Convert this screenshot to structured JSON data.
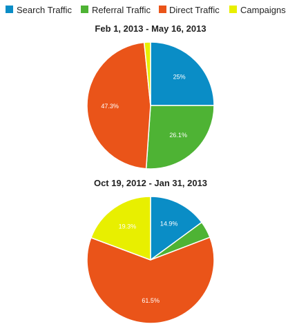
{
  "legend": {
    "items": [
      {
        "label": "Search Traffic",
        "color": "#0a8dc6"
      },
      {
        "label": "Referral Traffic",
        "color": "#4eb334"
      },
      {
        "label": "Direct Traffic",
        "color": "#ea5419"
      },
      {
        "label": "Campaigns",
        "color": "#e8ef00"
      }
    ]
  },
  "chart_data": [
    {
      "type": "pie",
      "title": "Feb 1, 2013 - May 16, 2013",
      "slices": [
        {
          "name": "Search Traffic",
          "value": 25.0,
          "label": "25%"
        },
        {
          "name": "Referral Traffic",
          "value": 26.1,
          "label": "26.1%"
        },
        {
          "name": "Direct Traffic",
          "value": 47.3,
          "label": "47.3%"
        },
        {
          "name": "Campaigns",
          "value": 1.6,
          "label": ""
        }
      ]
    },
    {
      "type": "pie",
      "title": "Oct 19, 2012 - Jan 31, 2013",
      "slices": [
        {
          "name": "Search Traffic",
          "value": 14.9,
          "label": "14.9%"
        },
        {
          "name": "Referral Traffic",
          "value": 4.3,
          "label": ""
        },
        {
          "name": "Direct Traffic",
          "value": 61.5,
          "label": "61.5%"
        },
        {
          "name": "Campaigns",
          "value": 19.3,
          "label": "19.3%"
        }
      ]
    }
  ]
}
